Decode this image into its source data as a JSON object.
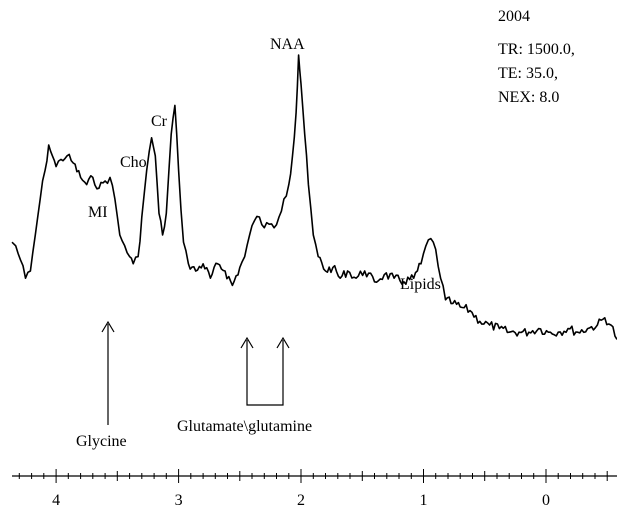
{
  "chart_data": {
    "type": "line",
    "title": "",
    "xlabel": "",
    "ylabel": "",
    "x_reversed": true,
    "xlim": [
      4.36,
      -0.58
    ],
    "ylim": [
      0,
      1
    ],
    "grid": false,
    "legend": "none",
    "line_color": "#000000",
    "x_ticks": [
      4,
      3,
      2,
      1,
      0
    ],
    "x_tick_labels": [
      "4",
      "3",
      "2",
      "1",
      "0"
    ],
    "acquisition_info": [
      "2004",
      "TR: 1500.0,",
      "TE: 35.0,",
      "NEX: 8.0"
    ],
    "peaks": [
      {
        "label": "NAA",
        "x": 2.02
      },
      {
        "label": "Cr",
        "x": 3.03
      },
      {
        "label": "Cho",
        "x": 3.22
      },
      {
        "label": "MI",
        "x": 3.56
      },
      {
        "label": "Lipids",
        "x": 0.92
      }
    ],
    "arrow_annotations": [
      {
        "label": "Glycine",
        "x": [
          3.55
        ]
      },
      {
        "label": "Glutamate\\glutamine",
        "x": [
          2.35,
          2.05
        ]
      }
    ],
    "series": [
      {
        "values": [
          [
            4.36,
            0.48
          ],
          [
            4.33,
            0.47
          ],
          [
            4.29,
            0.43
          ],
          [
            4.25,
            0.38
          ],
          [
            4.21,
            0.4
          ],
          [
            4.17,
            0.5
          ],
          [
            4.13,
            0.6
          ],
          [
            4.09,
            0.68
          ],
          [
            4.06,
            0.75
          ],
          [
            4.03,
            0.72
          ],
          [
            4.0,
            0.69
          ],
          [
            3.96,
            0.71
          ],
          [
            3.91,
            0.72
          ],
          [
            3.86,
            0.7
          ],
          [
            3.8,
            0.66
          ],
          [
            3.75,
            0.64
          ],
          [
            3.7,
            0.66
          ],
          [
            3.65,
            0.63
          ],
          [
            3.6,
            0.65
          ],
          [
            3.56,
            0.66
          ],
          [
            3.52,
            0.6
          ],
          [
            3.48,
            0.5
          ],
          [
            3.44,
            0.47
          ],
          [
            3.4,
            0.44
          ],
          [
            3.37,
            0.42
          ],
          [
            3.33,
            0.44
          ],
          [
            3.3,
            0.55
          ],
          [
            3.26,
            0.68
          ],
          [
            3.22,
            0.77
          ],
          [
            3.19,
            0.72
          ],
          [
            3.16,
            0.56
          ],
          [
            3.13,
            0.5
          ],
          [
            3.1,
            0.56
          ],
          [
            3.06,
            0.78
          ],
          [
            3.03,
            0.86
          ],
          [
            3.0,
            0.68
          ],
          [
            2.96,
            0.48
          ],
          [
            2.92,
            0.42
          ],
          [
            2.86,
            0.4
          ],
          [
            2.8,
            0.42
          ],
          [
            2.74,
            0.38
          ],
          [
            2.68,
            0.42
          ],
          [
            2.62,
            0.4
          ],
          [
            2.56,
            0.36
          ],
          [
            2.5,
            0.41
          ],
          [
            2.46,
            0.44
          ],
          [
            2.42,
            0.5
          ],
          [
            2.38,
            0.54
          ],
          [
            2.34,
            0.55
          ],
          [
            2.3,
            0.52
          ],
          [
            2.26,
            0.53
          ],
          [
            2.22,
            0.52
          ],
          [
            2.18,
            0.55
          ],
          [
            2.14,
            0.6
          ],
          [
            2.1,
            0.64
          ],
          [
            2.07,
            0.72
          ],
          [
            2.04,
            0.84
          ],
          [
            2.02,
            1.0
          ],
          [
            2.0,
            0.92
          ],
          [
            1.97,
            0.78
          ],
          [
            1.94,
            0.64
          ],
          [
            1.9,
            0.5
          ],
          [
            1.86,
            0.44
          ],
          [
            1.8,
            0.4
          ],
          [
            1.74,
            0.41
          ],
          [
            1.68,
            0.38
          ],
          [
            1.62,
            0.4
          ],
          [
            1.55,
            0.38
          ],
          [
            1.48,
            0.4
          ],
          [
            1.4,
            0.37
          ],
          [
            1.32,
            0.39
          ],
          [
            1.24,
            0.38
          ],
          [
            1.16,
            0.37
          ],
          [
            1.08,
            0.38
          ],
          [
            1.02,
            0.42
          ],
          [
            0.98,
            0.47
          ],
          [
            0.94,
            0.49
          ],
          [
            0.9,
            0.46
          ],
          [
            0.86,
            0.38
          ],
          [
            0.82,
            0.32
          ],
          [
            0.76,
            0.31
          ],
          [
            0.7,
            0.3
          ],
          [
            0.62,
            0.29
          ],
          [
            0.54,
            0.26
          ],
          [
            0.46,
            0.25
          ],
          [
            0.38,
            0.24
          ],
          [
            0.3,
            0.23
          ],
          [
            0.22,
            0.23
          ],
          [
            0.14,
            0.23
          ],
          [
            0.06,
            0.24
          ],
          [
            -0.02,
            0.23
          ],
          [
            -0.1,
            0.23
          ],
          [
            -0.18,
            0.24
          ],
          [
            -0.26,
            0.23
          ],
          [
            -0.34,
            0.24
          ],
          [
            -0.42,
            0.25
          ],
          [
            -0.48,
            0.27
          ],
          [
            -0.53,
            0.25
          ],
          [
            -0.58,
            0.21
          ]
        ]
      }
    ]
  }
}
